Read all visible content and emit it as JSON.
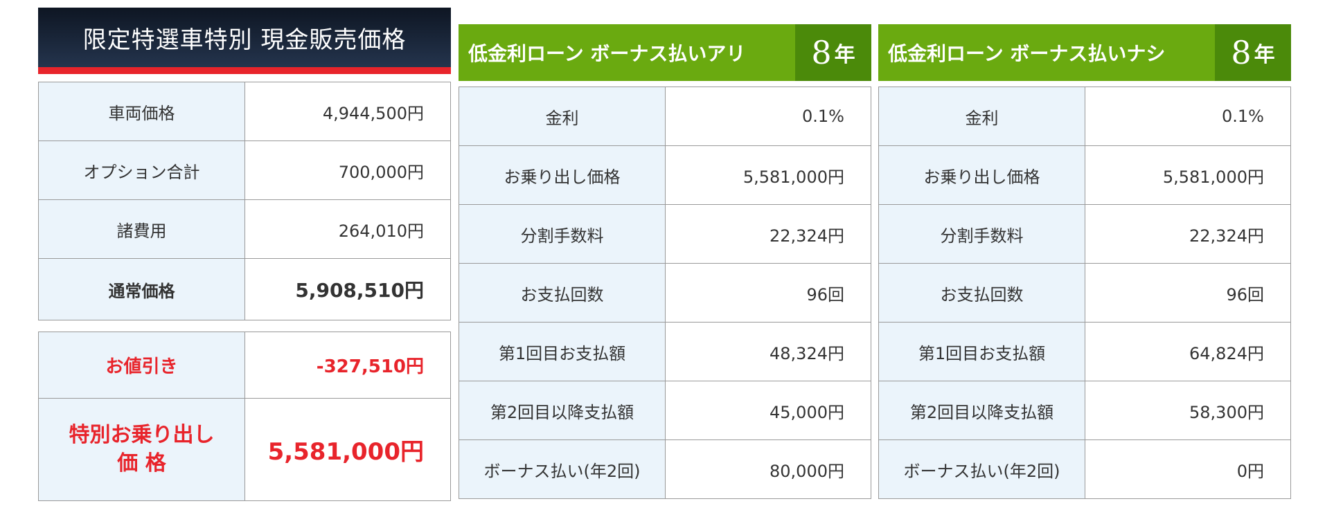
{
  "cash": {
    "title": "限定特選車特別 現金販売価格",
    "rows": [
      {
        "label": "車両価格",
        "value": "4,944,500円"
      },
      {
        "label": "オプション合計",
        "value": "700,000円"
      },
      {
        "label": "諸費用",
        "value": "264,010円"
      }
    ],
    "normal_price": {
      "label": "通常価格",
      "value": "5,908,510円"
    },
    "discount": {
      "label": "お値引き",
      "value": "-327,510円"
    },
    "special_price": {
      "label_line1": "特別お乗り出し",
      "label_line2": "価 格",
      "value": "5,581,000円"
    }
  },
  "loans": [
    {
      "title": "低金利ローン ボーナス払いアリ",
      "years_num": "8",
      "years_unit": "年",
      "rows": [
        {
          "label": "金利",
          "value": "0.1%"
        },
        {
          "label": "お乗り出し価格",
          "value": "5,581,000円"
        },
        {
          "label": "分割手数料",
          "value": "22,324円"
        },
        {
          "label": "お支払回数",
          "value": "96回"
        },
        {
          "label": "第1回目お支払額",
          "value": "48,324円"
        },
        {
          "label": "第2回目以降支払額",
          "value": "45,000円"
        },
        {
          "label": "ボーナス払い(年2回)",
          "value": "80,000円"
        }
      ]
    },
    {
      "title": "低金利ローン ボーナス払いナシ",
      "years_num": "8",
      "years_unit": "年",
      "rows": [
        {
          "label": "金利",
          "value": "0.1%"
        },
        {
          "label": "お乗り出し価格",
          "value": "5,581,000円"
        },
        {
          "label": "分割手数料",
          "value": "22,324円"
        },
        {
          "label": "お支払回数",
          "value": "96回"
        },
        {
          "label": "第1回目お支払額",
          "value": "64,824円"
        },
        {
          "label": "第2回目以降支払額",
          "value": "58,300円"
        },
        {
          "label": "ボーナス払い(年2回)",
          "value": "0円"
        }
      ]
    }
  ],
  "colors": {
    "loan_header": "#6aaa10",
    "loan_years_box": "#4b8a0a",
    "cash_header": "#1a2638",
    "accent_red": "#e8242b",
    "label_cell": "#ebf4fb"
  }
}
